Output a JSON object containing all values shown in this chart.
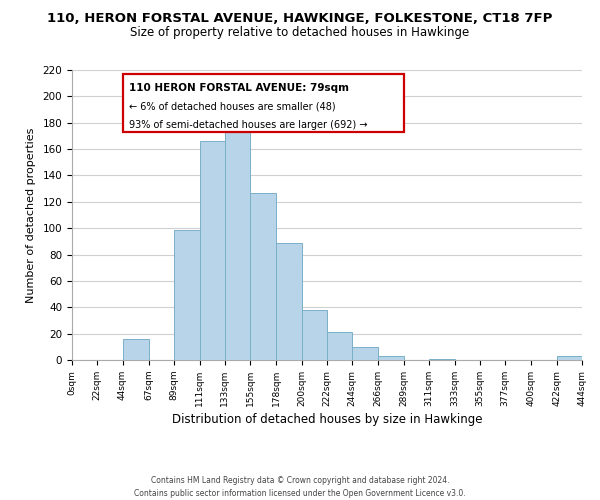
{
  "title": "110, HERON FORSTAL AVENUE, HAWKINGE, FOLKESTONE, CT18 7FP",
  "subtitle": "Size of property relative to detached houses in Hawkinge",
  "xlabel": "Distribution of detached houses by size in Hawkinge",
  "ylabel": "Number of detached properties",
  "bar_color": "#b8d4e8",
  "bar_edge_color": "#7aafc8",
  "bin_edges": [
    0,
    22,
    44,
    67,
    89,
    111,
    133,
    155,
    178,
    200,
    222,
    244,
    266,
    289,
    311,
    333,
    355,
    377,
    400,
    422,
    444
  ],
  "bin_labels": [
    "0sqm",
    "22sqm",
    "44sqm",
    "67sqm",
    "89sqm",
    "111sqm",
    "133sqm",
    "155sqm",
    "178sqm",
    "200sqm",
    "222sqm",
    "244sqm",
    "266sqm",
    "289sqm",
    "311sqm",
    "333sqm",
    "355sqm",
    "377sqm",
    "400sqm",
    "422sqm",
    "444sqm"
  ],
  "counts": [
    0,
    0,
    16,
    0,
    99,
    166,
    176,
    127,
    89,
    38,
    21,
    10,
    3,
    0,
    1,
    0,
    0,
    0,
    0,
    3
  ],
  "ylim": [
    0,
    220
  ],
  "yticks": [
    0,
    20,
    40,
    60,
    80,
    100,
    120,
    140,
    160,
    180,
    200,
    220
  ],
  "annotation_title": "110 HERON FORSTAL AVENUE: 79sqm",
  "annotation_line1": "← 6% of detached houses are smaller (48)",
  "annotation_line2": "93% of semi-detached houses are larger (692) →",
  "annotation_box_color": "#ffffff",
  "annotation_box_edge_color": "#cc0000",
  "footer1": "Contains HM Land Registry data © Crown copyright and database right 2024.",
  "footer2": "Contains public sector information licensed under the Open Government Licence v3.0.",
  "bg_color": "#ffffff",
  "grid_color": "#d0d0d0",
  "title_fontsize": 9.5,
  "subtitle_fontsize": 8.5,
  "xlabel_fontsize": 8.5,
  "ylabel_fontsize": 8.0,
  "tick_fontsize": 6.5,
  "ytick_fontsize": 7.5,
  "footer_fontsize": 5.5,
  "ann_title_fontsize": 7.5,
  "ann_text_fontsize": 7.0
}
